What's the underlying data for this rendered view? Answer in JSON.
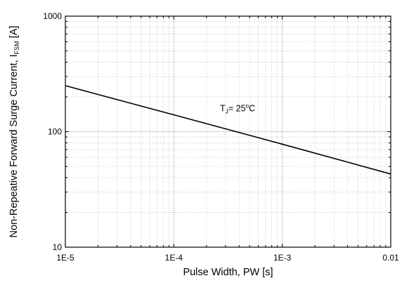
{
  "chart_data": {
    "type": "line",
    "title": "",
    "x_scale": "log",
    "y_scale": "log",
    "xlim": [
      1e-05,
      0.01
    ],
    "ylim": [
      10,
      1000
    ],
    "grid": true,
    "xlabel": "Pulse Width, PW [s]",
    "ylabel": {
      "prefix": "Non-Repeative Forward Surge Current, I",
      "subscript": "FSM",
      "suffix": " [A]"
    },
    "x_ticks": [
      {
        "value": 1e-05,
        "label": "1E-5"
      },
      {
        "value": 0.0001,
        "label": "1E-4"
      },
      {
        "value": 0.001,
        "label": "1E-3"
      },
      {
        "value": 0.01,
        "label": "0.01"
      }
    ],
    "y_ticks": [
      {
        "value": 10,
        "label": "10"
      },
      {
        "value": 100,
        "label": "100"
      },
      {
        "value": 1000,
        "label": "1000"
      }
    ],
    "series": [
      {
        "color": "#000000",
        "points": [
          {
            "x": 1e-05,
            "y": 250
          },
          {
            "x": 0.0001,
            "y": 140
          },
          {
            "x": 0.001,
            "y": 78
          },
          {
            "x": 0.01,
            "y": 43
          }
        ]
      }
    ],
    "annotations": [
      {
        "x": 0.0003,
        "y": 150,
        "label": {
          "prefix": "T",
          "subscript": "J",
          "middle": "= 25",
          "superscript": "o",
          "suffix": "C"
        }
      }
    ]
  }
}
